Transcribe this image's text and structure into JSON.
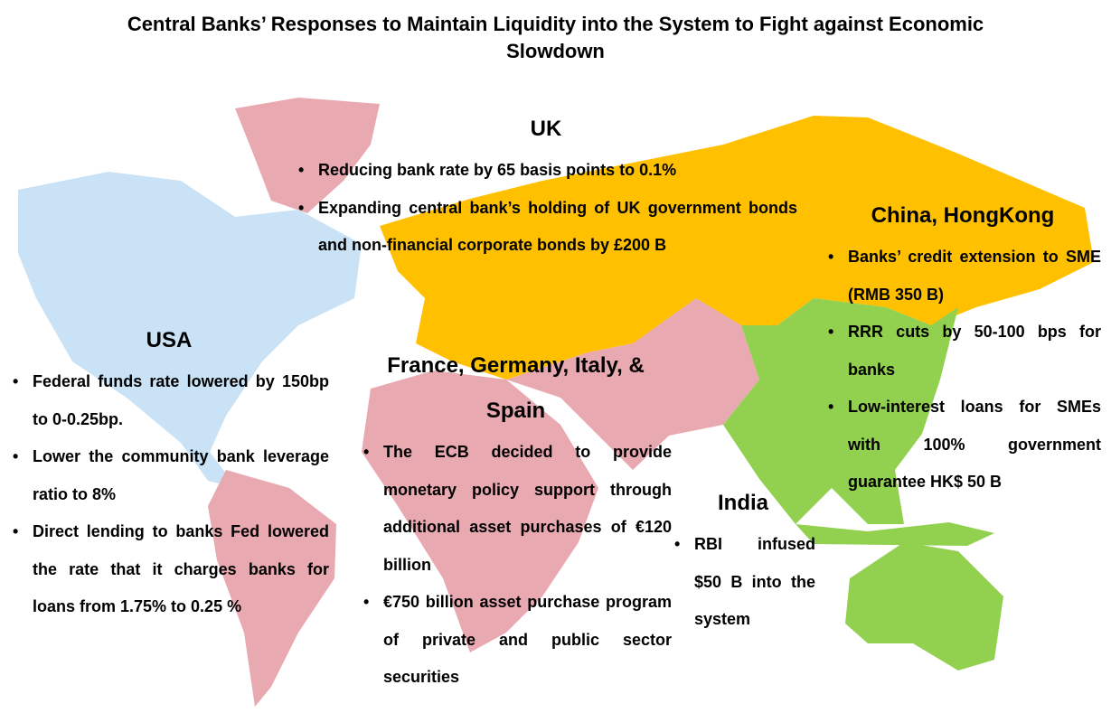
{
  "title": "Central Banks’ Responses to Maintain Liquidity into the System to Fight against Economic Slowdown",
  "regions": [
    {
      "name": "UK",
      "bullets": [
        "Reducing bank rate by 65 basis points to 0.1%",
        "Expanding central bank’s holding of UK government bonds and non-financial corporate bonds by £200  B"
      ]
    },
    {
      "name": "China, HongKong",
      "bullets": [
        "Banks’ credit extension to SME (RMB 350 B)",
        "RRR cuts by 50-100 bps for banks",
        "Low-interest loans for SMEs with 100% government guarantee HK$ 50 B"
      ]
    },
    {
      "name": "USA",
      "bullets": [
        "Federal funds rate lowered by 150bp to 0-0.25bp.",
        "Lower the community bank leverage ratio to 8%",
        "Direct lending to banks Fed lowered the rate that it charges banks for loans from 1.75% to 0.25 %"
      ]
    },
    {
      "name": "France, Germany, Italy, & Spain",
      "bullets": [
        "The ECB decided to provide monetary policy support through additional asset purchases of €120 billion",
        "€750 billion asset purchase program of private and public sector securities"
      ]
    },
    {
      "name": "India",
      "bullets": [
        "RBI infused $50 B into the system"
      ]
    }
  ]
}
